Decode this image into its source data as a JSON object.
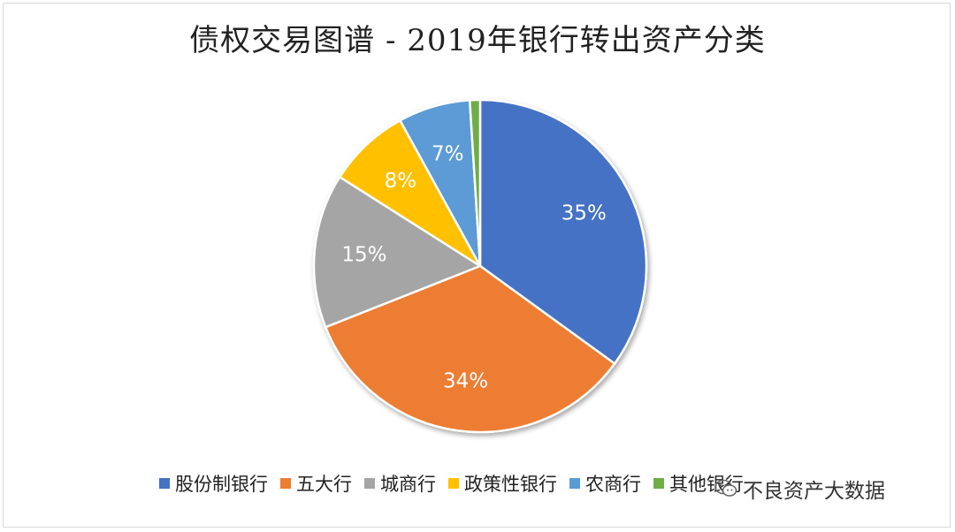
{
  "chart_data": {
    "type": "pie",
    "title": "债权交易图谱 - 2019年银行转出资产分类",
    "slices": [
      {
        "label": "股份制银行",
        "value": 35,
        "display": "35%",
        "color": "#4472C4"
      },
      {
        "label": "五大行",
        "value": 34,
        "display": "34%",
        "color": "#ED7D31"
      },
      {
        "label": "城商行",
        "value": 15,
        "display": "15%",
        "color": "#A5A5A5"
      },
      {
        "label": "政策性银行",
        "value": 8,
        "display": "8%",
        "color": "#FFC000"
      },
      {
        "label": "农商行",
        "value": 7,
        "display": "7%",
        "color": "#5B9BD5"
      },
      {
        "label": "其他银行",
        "value": 1,
        "display": "",
        "color": "#70AD47"
      }
    ],
    "legend_position": "bottom"
  },
  "watermark": {
    "text": "不良资产大数据",
    "icon": "wechat-icon"
  }
}
